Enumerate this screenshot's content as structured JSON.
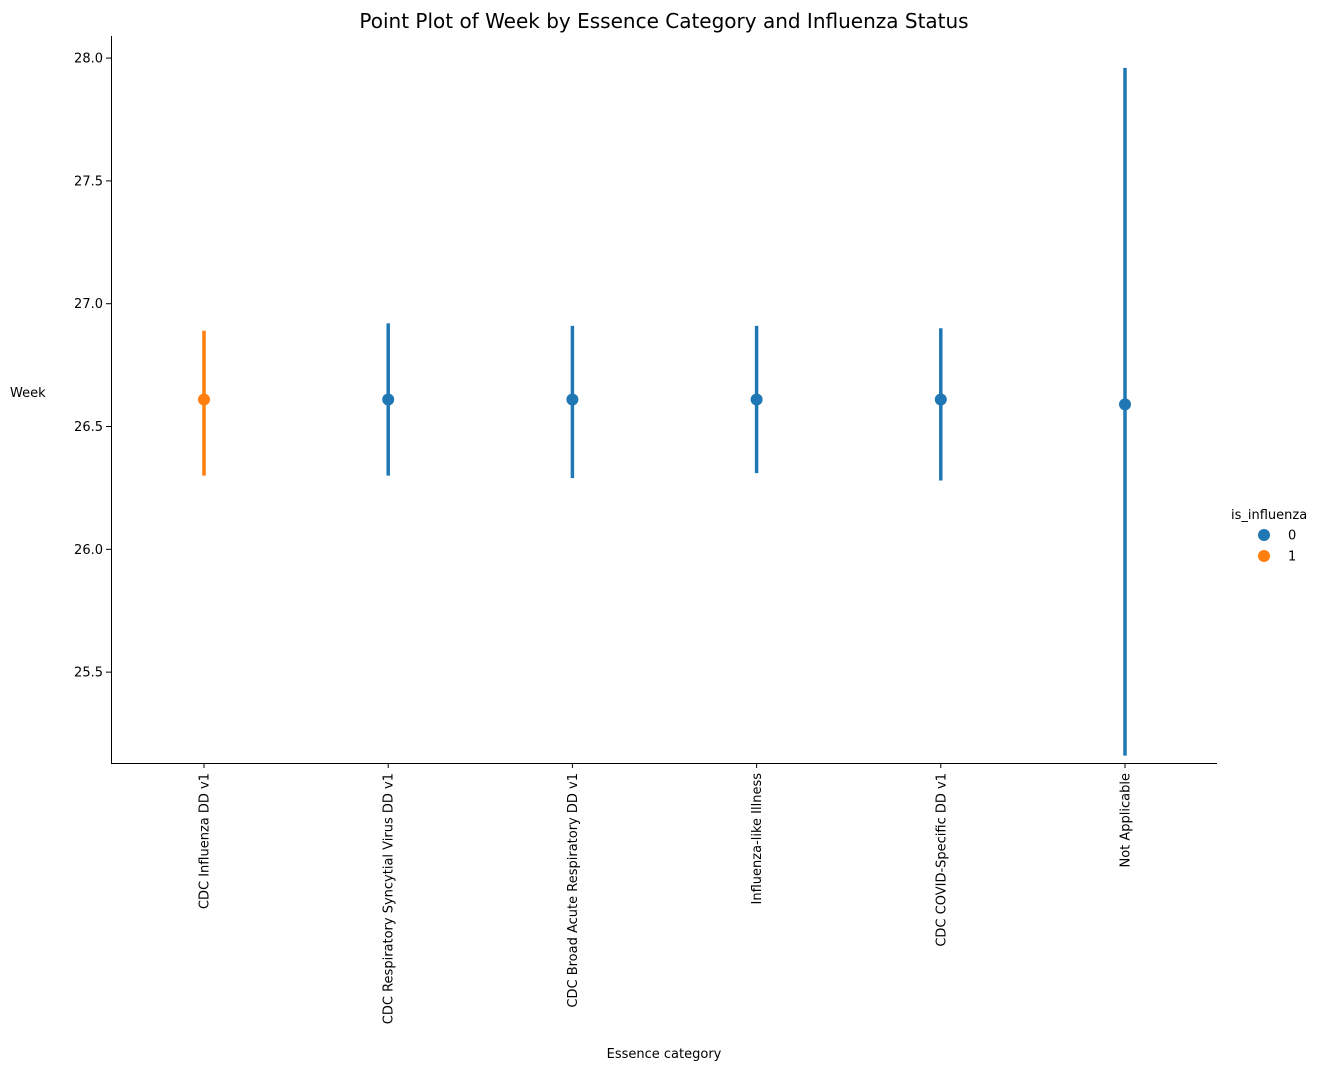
{
  "chart_data": {
    "type": "scatter",
    "title": "Point Plot of Week by Essence Category and Influenza Status",
    "xlabel": "Essence category",
    "ylabel": "Week",
    "categories": [
      "CDC Influenza DD v1",
      "CDC Respiratory Syncytial Virus DD v1",
      "CDC Broad Acute Respiratory DD v1",
      "Influenza-like Illness",
      "CDC COVID-Specific DD v1",
      "Not Applicable"
    ],
    "ylim": [
      25.13,
      28.09
    ],
    "yticks": [
      25.5,
      26.0,
      26.5,
      27.0,
      27.5,
      28.0
    ],
    "ytick_labels": [
      "25.5",
      "26.0",
      "26.5",
      "27.0",
      "27.5",
      "28.0"
    ],
    "grid": false,
    "legend": {
      "title": "is_influenza",
      "placement": "right",
      "entries": [
        {
          "label": "0",
          "color": "#1f77b4"
        },
        {
          "label": "1",
          "color": "#ff7f0e"
        }
      ]
    },
    "points": [
      {
        "category": "CDC Influenza DD v1",
        "series": "1",
        "y": 26.61,
        "ci": [
          26.3,
          26.89
        ]
      },
      {
        "category": "CDC Respiratory Syncytial Virus DD v1",
        "series": "0",
        "y": 26.61,
        "ci": [
          26.3,
          26.92
        ]
      },
      {
        "category": "CDC Broad Acute Respiratory DD v1",
        "series": "0",
        "y": 26.61,
        "ci": [
          26.29,
          26.91
        ]
      },
      {
        "category": "Influenza-like Illness",
        "series": "0",
        "y": 26.61,
        "ci": [
          26.31,
          26.91
        ]
      },
      {
        "category": "CDC COVID-Specific DD v1",
        "series": "0",
        "y": 26.61,
        "ci": [
          26.28,
          26.9
        ]
      },
      {
        "category": "Not Applicable",
        "series": "0",
        "y": 26.59,
        "ci": [
          25.16,
          27.96
        ]
      }
    ]
  }
}
